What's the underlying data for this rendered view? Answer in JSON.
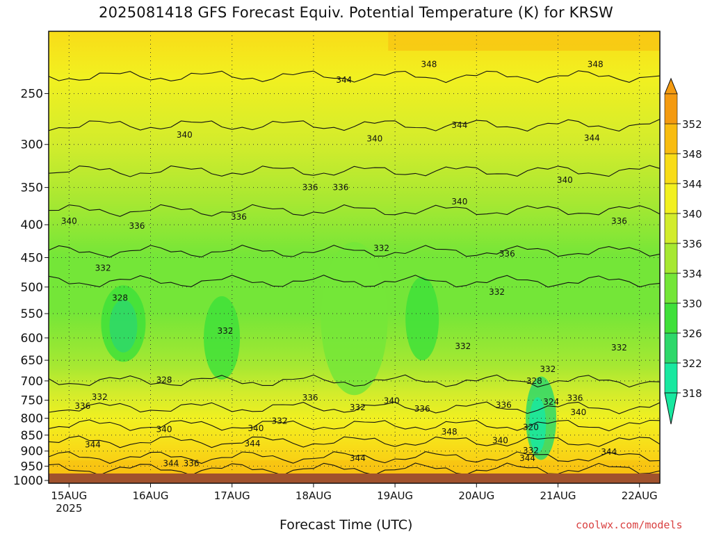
{
  "title": "2025081418 GFS Forecast Equiv. Potential Temperature (K) for KRSW",
  "xlabel": "Forecast Time (UTC)",
  "credit": "coolwx.com/models",
  "chart_data": {
    "type": "heatmap",
    "title": "2025081418 GFS Forecast Equiv. Potential Temperature (K) for KRSW",
    "xlabel": "Forecast Time (UTC)",
    "ylabel": "",
    "x_ticks": [
      {
        "label": "15AUG",
        "sublabel": "2025",
        "hour": 6
      },
      {
        "label": "16AUG",
        "hour": 30
      },
      {
        "label": "17AUG",
        "hour": 54
      },
      {
        "label": "18AUG",
        "hour": 78
      },
      {
        "label": "19AUG",
        "hour": 102
      },
      {
        "label": "20AUG",
        "hour": 126
      },
      {
        "label": "21AUG",
        "hour": 150
      },
      {
        "label": "22AUG",
        "hour": 174
      }
    ],
    "xlim_hours": [
      0,
      180
    ],
    "y_ticks": [
      250,
      300,
      350,
      400,
      450,
      500,
      550,
      600,
      650,
      700,
      750,
      800,
      850,
      900,
      950,
      1000
    ],
    "ylim": [
      1010,
      200
    ],
    "y_scale": "log",
    "colorbar": {
      "levels": [
        318,
        322,
        326,
        330,
        334,
        336,
        340,
        344,
        348,
        352
      ],
      "colors": [
        "#19e8a0",
        "#2ed86a",
        "#3fe03a",
        "#74e638",
        "#a6e832",
        "#d2ec2c",
        "#f2f020",
        "#f8dc18",
        "#f8bc10",
        "#f49a10"
      ],
      "extend": "both"
    },
    "contour_labels": [
      {
        "value": "348",
        "hour": 112,
        "p": 225
      },
      {
        "value": "348",
        "hour": 161,
        "p": 225
      },
      {
        "value": "344",
        "hour": 87,
        "p": 238
      },
      {
        "value": "344",
        "hour": 121,
        "p": 280
      },
      {
        "value": "344",
        "hour": 160,
        "p": 293
      },
      {
        "value": "340",
        "hour": 40,
        "p": 290
      },
      {
        "value": "340",
        "hour": 96,
        "p": 294
      },
      {
        "value": "340",
        "hour": 152,
        "p": 341
      },
      {
        "value": "340",
        "hour": 121,
        "p": 368
      },
      {
        "value": "340",
        "hour": 6,
        "p": 395
      },
      {
        "value": "336",
        "hour": 77,
        "p": 350
      },
      {
        "value": "336",
        "hour": 86,
        "p": 350
      },
      {
        "value": "336",
        "hour": 56,
        "p": 389
      },
      {
        "value": "336",
        "hour": 26,
        "p": 402
      },
      {
        "value": "336",
        "hour": 168,
        "p": 395
      },
      {
        "value": "336",
        "hour": 135,
        "p": 444
      },
      {
        "value": "332",
        "hour": 16,
        "p": 467
      },
      {
        "value": "332",
        "hour": 98,
        "p": 435
      },
      {
        "value": "332",
        "hour": 132,
        "p": 509
      },
      {
        "value": "332",
        "hour": 52,
        "p": 585
      },
      {
        "value": "332",
        "hour": 122,
        "p": 618
      },
      {
        "value": "332",
        "hour": 168,
        "p": 621
      },
      {
        "value": "328",
        "hour": 21,
        "p": 520
      },
      {
        "value": "328",
        "hour": 34,
        "p": 698
      },
      {
        "value": "332",
        "hour": 15,
        "p": 742
      },
      {
        "value": "336",
        "hour": 10,
        "p": 766
      },
      {
        "value": "340",
        "hour": 34,
        "p": 833
      },
      {
        "value": "344",
        "hour": 13,
        "p": 880
      },
      {
        "value": "344",
        "hour": 36,
        "p": 941
      },
      {
        "value": "336",
        "hour": 42,
        "p": 941
      },
      {
        "value": "340",
        "hour": 61,
        "p": 830
      },
      {
        "value": "344",
        "hour": 60,
        "p": 876
      },
      {
        "value": "332",
        "hour": 68,
        "p": 808
      },
      {
        "value": "336",
        "hour": 77,
        "p": 743
      },
      {
        "value": "332",
        "hour": 91,
        "p": 770
      },
      {
        "value": "340",
        "hour": 101,
        "p": 752
      },
      {
        "value": "336",
        "hour": 110,
        "p": 774
      },
      {
        "value": "344",
        "hour": 91,
        "p": 923
      },
      {
        "value": "348",
        "hour": 118,
        "p": 840
      },
      {
        "value": "336",
        "hour": 134,
        "p": 763
      },
      {
        "value": "340",
        "hour": 133,
        "p": 866
      },
      {
        "value": "344",
        "hour": 141,
        "p": 923
      },
      {
        "value": "328",
        "hour": 143,
        "p": 700
      },
      {
        "value": "332",
        "hour": 147,
        "p": 671
      },
      {
        "value": "324",
        "hour": 148,
        "p": 755
      },
      {
        "value": "320",
        "hour": 142,
        "p": 826
      },
      {
        "value": "332",
        "hour": 142,
        "p": 898
      },
      {
        "value": "336",
        "hour": 155,
        "p": 744
      },
      {
        "value": "340",
        "hour": 156,
        "p": 783
      },
      {
        "value": "344",
        "hour": 165,
        "p": 903
      }
    ]
  }
}
